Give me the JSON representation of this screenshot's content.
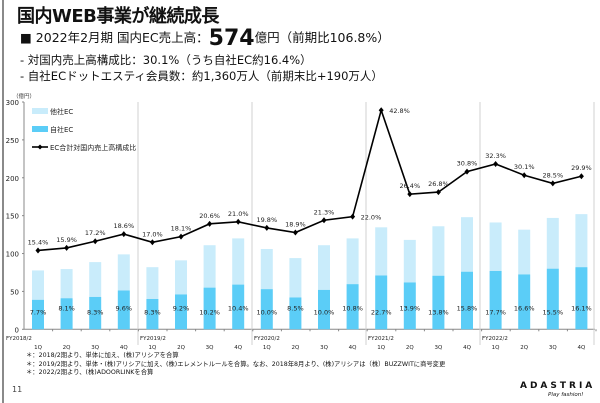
{
  "header": {
    "title": "国内WEB事業が継続成長",
    "line1_prefix": "■  2022年2月期 国内EC売上高：",
    "line1_value": "574",
    "line1_suffix": "億円（前期比106.8%）",
    "line2": "- 対国内売上高構成比：30.1%（うち自社EC約16.4%）",
    "line3": "- 自社ECドットエスティ会員数：約1,360万人（前期末比+190万人）"
  },
  "footnotes": [
    "＊：2018/2期より、単体に加え、(株)アリシアを合算",
    "＊：2019/2期より、単体・(株)アリシアに加え、(株)エレメントルールを合算。なお、2018年8月より、(株)アリシアは（株）BUZZWITに商号変更",
    "＊：2022/2期より、(株)ADOORLINKを合算"
  ],
  "page_number": "11",
  "logo": {
    "name": "ADASTRIA",
    "tagline": "Play fashion!"
  },
  "chart_data": {
    "type": "bar+line",
    "ylabel": "（億円）",
    "ylim": [
      0,
      300
    ],
    "yticks": [
      0,
      50,
      100,
      150,
      200,
      250,
      300
    ],
    "secondary_ylim_hidden": [
      0,
      44.4
    ],
    "grid": false,
    "legend_position": "top-left",
    "fiscal_years": [
      "FY2018/2",
      "FY2019/2",
      "FY2020/2",
      "FY2021/2",
      "FY2022/2"
    ],
    "quarters": [
      "1Q",
      "2Q",
      "3Q",
      "4Q"
    ],
    "colors": {
      "other_ec": "#c9ecfb",
      "own_ec": "#5bcdf7",
      "line": "#000000",
      "separator": "#d0d0d0"
    },
    "series": [
      {
        "name": "他社EC",
        "kind": "stacked-bar",
        "values": [
          38.8,
          38.5,
          46,
          47.7,
          42,
          45,
          56,
          61,
          53,
          52,
          59,
          60.4,
          63.6,
          56.2,
          65.3,
          72,
          64,
          59.1,
          67,
          70
        ]
      },
      {
        "name": "自社EC",
        "kind": "stacked-bar",
        "values": [
          38.9,
          41,
          42.7,
          51.2,
          40,
          46,
          55,
          59,
          53,
          42,
          52,
          59.6,
          71,
          61.8,
          70.7,
          76,
          77,
          72.4,
          80,
          82
        ],
        "labels": [
          "7.7%",
          "8.1%",
          "8.3%",
          "9.6%",
          "8.3%",
          "9.2%",
          "10.2%",
          "10.4%",
          "10.0%",
          "8.5%",
          "10.0%",
          "10.8%",
          "22.7%",
          "13.9%",
          "13.8%",
          "15.8%",
          "17.7%",
          "16.6%",
          "15.5%",
          "16.1%"
        ]
      },
      {
        "name": "EC合計対国内売上高構成比",
        "kind": "line",
        "values": [
          15.4,
          15.9,
          17.2,
          18.6,
          17.0,
          18.1,
          20.6,
          21.0,
          19.8,
          18.9,
          21.3,
          22.0,
          42.8,
          26.4,
          26.8,
          30.8,
          32.3,
          30.1,
          28.5,
          29.9
        ],
        "labels": [
          "15.4%",
          "15.9%",
          "17.2%",
          "18.6%",
          "17.0%",
          "18.1%",
          "20.6%",
          "21.0%",
          "19.8%",
          "18.9%",
          "21.3%",
          "22.0%",
          "42.8%",
          "26.4%",
          "26.8%",
          "30.8%",
          "32.3%",
          "30.1%",
          "28.5%",
          "29.9%"
        ]
      }
    ]
  }
}
